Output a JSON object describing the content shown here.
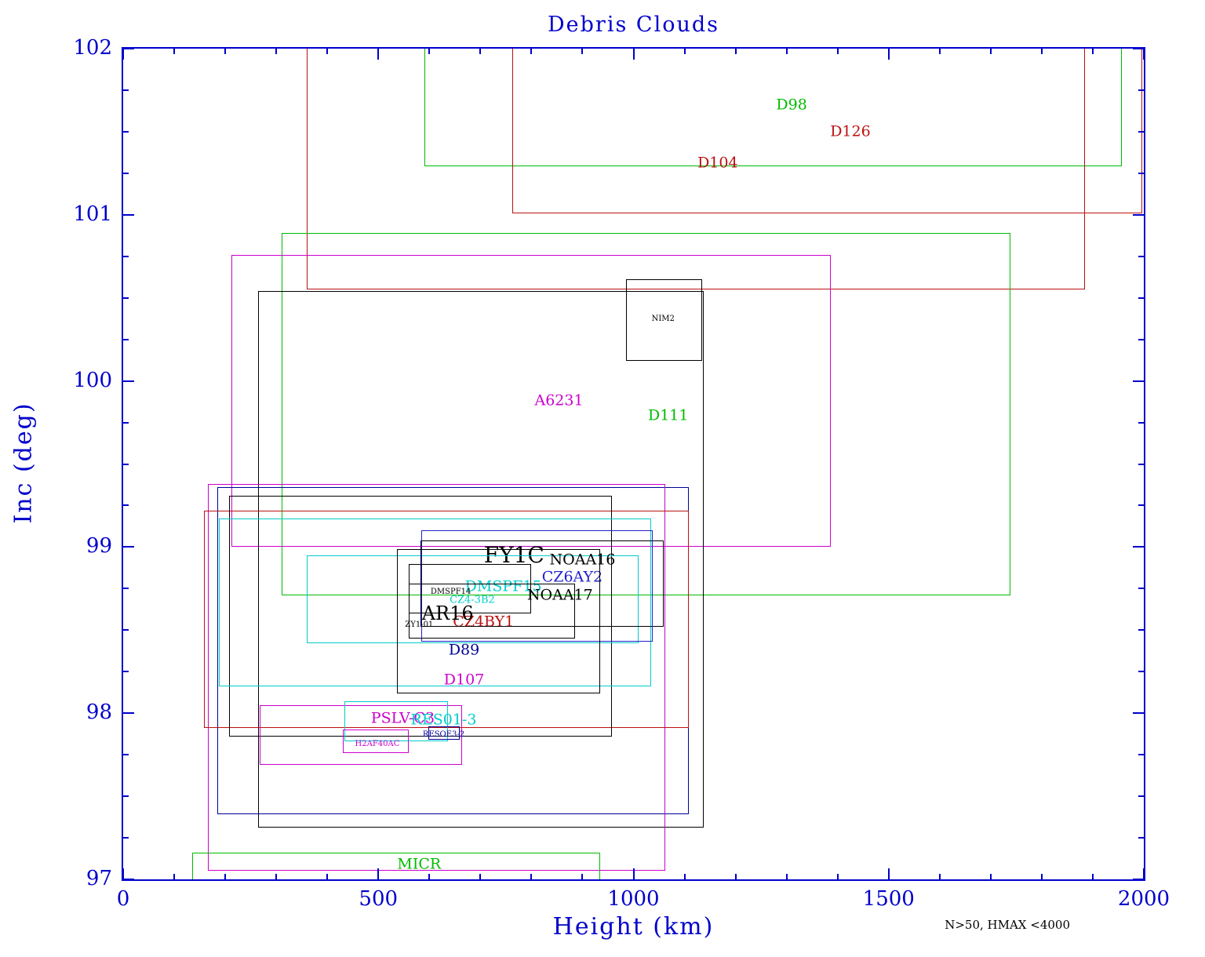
{
  "colors": {
    "axis": "#0000cc",
    "green": "#00bb00",
    "red": "#bb1111",
    "magenta": "#cc00cc",
    "cyan": "#00cccc",
    "blue": "#2222cc",
    "navy": "#000099",
    "black": "#000000"
  },
  "chart_data": {
    "type": "rect-overlay",
    "title": "Debris Clouds",
    "xlabel": "Height (km)",
    "ylabel": "Inc (deg)",
    "annotation": "N>50, HMAX <4000",
    "x_range": [
      0,
      2000
    ],
    "y_range": [
      97,
      102
    ],
    "x_ticks": [
      0,
      500,
      1000,
      1500,
      2000
    ],
    "y_ticks": [
      97,
      98,
      99,
      100,
      101,
      102
    ],
    "x_minor_step": 100,
    "y_minor_step": 0.25,
    "grid": false,
    "legend": "none",
    "clouds": [
      {
        "name": "D98",
        "color": "green",
        "x": [
          590,
          1957
        ],
        "y": [
          101.29,
          102.1
        ],
        "label": {
          "x": 1310,
          "y": 101.66,
          "size": "m"
        }
      },
      {
        "name": "D126",
        "color": "red",
        "x": [
          762,
          1997
        ],
        "y": [
          101.01,
          102.1
        ],
        "label": {
          "x": 1425,
          "y": 101.5,
          "size": "m"
        }
      },
      {
        "name": "D104",
        "color": "red",
        "x": [
          360,
          1885
        ],
        "y": [
          100.55,
          102.1
        ],
        "label": {
          "x": 1165,
          "y": 101.31,
          "size": "m"
        }
      },
      {
        "name": "D111",
        "color": "green",
        "x": [
          311,
          1739
        ],
        "y": [
          98.71,
          100.89
        ],
        "label": {
          "x": 1068,
          "y": 99.79,
          "size": "m"
        }
      },
      {
        "name": "A6231",
        "color": "magenta",
        "x": [
          212,
          1387
        ],
        "y": [
          99.0,
          100.76
        ],
        "label": {
          "x": 854,
          "y": 99.88,
          "size": "m"
        }
      },
      {
        "name": "NIM2",
        "color": "black",
        "x": [
          985,
          1134
        ],
        "y": [
          100.12,
          100.61
        ],
        "label": {
          "x": 1058,
          "y": 100.37,
          "size": "xs"
        }
      },
      {
        "name": "FY1C",
        "color": "black",
        "x": [
          264,
          1137
        ],
        "y": [
          97.31,
          100.54
        ],
        "label": {
          "x": 766,
          "y": 98.95,
          "size": "xl"
        }
      },
      {
        "name": "D89",
        "color": "navy",
        "x": [
          185,
          1108
        ],
        "y": [
          97.39,
          99.36
        ],
        "label": {
          "x": 668,
          "y": 98.38,
          "size": "m"
        }
      },
      {
        "name": "D107",
        "color": "magenta",
        "x": [
          166,
          1062
        ],
        "y": [
          97.05,
          99.38
        ],
        "label": {
          "x": 668,
          "y": 98.2,
          "size": "m"
        }
      },
      {
        "name": "CZ4BY1",
        "color": "red",
        "x": [
          158,
          1108
        ],
        "y": [
          97.91,
          99.22
        ],
        "label": {
          "x": 706,
          "y": 98.55,
          "size": "m"
        }
      },
      {
        "name": "AR16",
        "color": "black",
        "x": [
          207,
          958
        ],
        "y": [
          97.86,
          99.31
        ],
        "label": {
          "x": 636,
          "y": 98.6,
          "size": "l"
        }
      },
      {
        "name": "CZ4-3B2",
        "color": "cyan",
        "x": [
          187,
          1034
        ],
        "y": [
          98.16,
          99.17
        ],
        "label": {
          "x": 684,
          "y": 98.68,
          "size": "s"
        }
      },
      {
        "name": "DMSPF15",
        "color": "cyan",
        "x": [
          360,
          1010
        ],
        "y": [
          98.42,
          98.95
        ],
        "label": {
          "x": 745,
          "y": 98.76,
          "size": "m"
        }
      },
      {
        "name": "NOAA16",
        "color": "black",
        "x": [
          582,
          1059
        ],
        "y": [
          98.52,
          99.04
        ],
        "label": {
          "x": 900,
          "y": 98.92,
          "size": "m"
        }
      },
      {
        "name": "CZ6AY2",
        "color": "blue",
        "x": [
          584,
          1038
        ],
        "y": [
          98.43,
          99.1
        ],
        "label": {
          "x": 880,
          "y": 98.82,
          "size": "m"
        }
      },
      {
        "name": "NOAA17",
        "color": "black",
        "x": [
          536,
          935
        ],
        "y": [
          98.12,
          98.99
        ],
        "label": {
          "x": 856,
          "y": 98.71,
          "size": "m"
        }
      },
      {
        "name": "DMSPF14",
        "color": "black",
        "x": [
          560,
          800
        ],
        "y": [
          98.6,
          98.9
        ],
        "label": {
          "x": 642,
          "y": 98.73,
          "size": "xs"
        }
      },
      {
        "name": "ZY1-01",
        "color": "black",
        "x": [
          559,
          886
        ],
        "y": [
          98.45,
          98.78
        ],
        "label": {
          "x": 580,
          "y": 98.53,
          "size": "xs"
        }
      },
      {
        "name": "PSLV-C3",
        "color": "magenta",
        "x": [
          268,
          664
        ],
        "y": [
          97.69,
          98.05
        ],
        "label": {
          "x": 548,
          "y": 97.97,
          "size": "m"
        }
      },
      {
        "name": "RES01-3",
        "color": "cyan",
        "x": [
          434,
          636
        ],
        "y": [
          97.83,
          98.07
        ],
        "label": {
          "x": 628,
          "y": 97.96,
          "size": "m"
        }
      },
      {
        "name": "RESOE3-2",
        "color": "navy",
        "x": [
          598,
          660
        ],
        "y": [
          97.84,
          97.92
        ],
        "label": {
          "x": 628,
          "y": 97.87,
          "size": "xs"
        }
      },
      {
        "name": "H2AF40AC",
        "color": "magenta",
        "x": [
          430,
          560
        ],
        "y": [
          97.76,
          97.9
        ],
        "label": {
          "x": 498,
          "y": 97.81,
          "size": "xs"
        }
      },
      {
        "name": "MICR",
        "color": "green",
        "x": [
          135,
          935
        ],
        "y": [
          96.9,
          97.16
        ],
        "label": {
          "x": 580,
          "y": 97.09,
          "size": "m"
        }
      }
    ]
  }
}
